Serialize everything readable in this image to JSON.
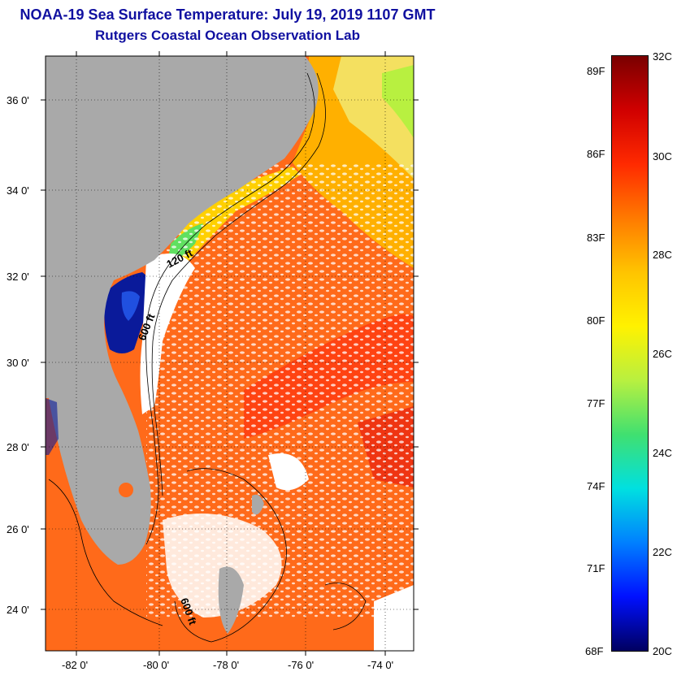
{
  "title": {
    "line1": "NOAA-19 Sea Surface Temperature:  July 19, 2019 1107 GMT",
    "line2": "Rutgers Coastal Ocean Observation Lab"
  },
  "map": {
    "latitude_labels": [
      "36 0'",
      "34 0'",
      "32 0'",
      "30 0'",
      "28 0'",
      "26 0'",
      "24 0'"
    ],
    "longitude_labels": [
      "-82 0'",
      "-80 0'",
      "-78 0'",
      "-76 0'",
      "-74 0'"
    ],
    "isobath_labels": [
      "120 ft",
      "600 ft",
      "600 ft"
    ],
    "colors": {
      "land": "#a9a9a9",
      "cloud": "#ffffff",
      "warm_water": "#ff6a1a",
      "hot_water": "#e82010",
      "shelf_water": "#ffd000",
      "cool_water": "#60e060",
      "cold_water": "#0a1a9a"
    }
  },
  "colorbar": {
    "fahrenheit_labels": [
      "89F",
      "86F",
      "83F",
      "80F",
      "77F",
      "74F",
      "71F",
      "68F"
    ],
    "celsius_labels": [
      "32C",
      "30C",
      "28C",
      "26C",
      "24C",
      "22C",
      "20C"
    ],
    "range_celsius": [
      20,
      32
    ],
    "range_fahrenheit": [
      68,
      89.6
    ],
    "gradient_colors": [
      "#7a0000",
      "#d00000",
      "#ff2a00",
      "#ff7a00",
      "#ffc400",
      "#fff200",
      "#b8f040",
      "#40e070",
      "#00e0e0",
      "#0080ff",
      "#0010ff",
      "#000060"
    ]
  }
}
